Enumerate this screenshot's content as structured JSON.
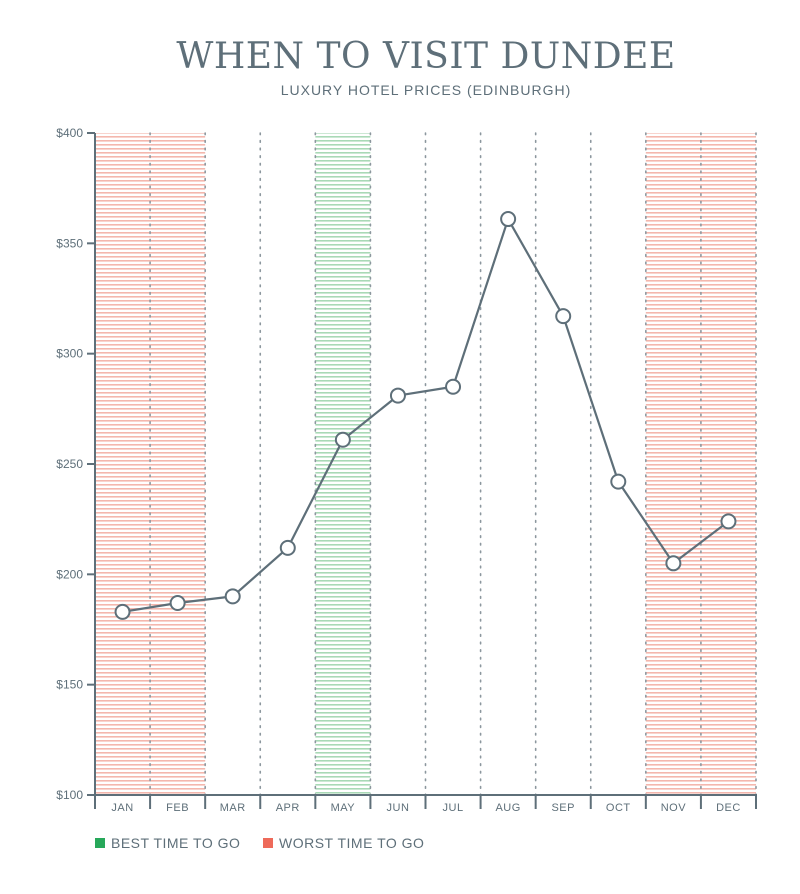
{
  "chart_data": {
    "type": "line",
    "title": "WHEN TO VISIT DUNDEE",
    "subtitle": "LUXURY HOTEL PRICES (EDINBURGH)",
    "categories": [
      "JAN",
      "FEB",
      "MAR",
      "APR",
      "MAY",
      "JUN",
      "JUL",
      "AUG",
      "SEP",
      "OCT",
      "NOV",
      "DEC"
    ],
    "series": [
      {
        "values": [
          183,
          187,
          190,
          212,
          261,
          281,
          285,
          361,
          317,
          242,
          205,
          224
        ]
      }
    ],
    "ylim": [
      100,
      400
    ],
    "yticks": [
      100,
      150,
      200,
      250,
      300,
      350,
      400
    ],
    "ytick_labels": [
      "$100",
      "$150",
      "$200",
      "$250",
      "$300",
      "$350",
      "$400"
    ],
    "best_months": [
      "MAY"
    ],
    "worst_months": [
      "JAN",
      "FEB",
      "NOV",
      "DEC"
    ],
    "colors": {
      "line": "#5e6f79",
      "best": "#27a85a",
      "worst": "#ee6a5a",
      "text": "#5e6f79"
    },
    "legend": {
      "best_label": "BEST TIME TO GO",
      "worst_label": "WORST TIME TO GO"
    }
  }
}
